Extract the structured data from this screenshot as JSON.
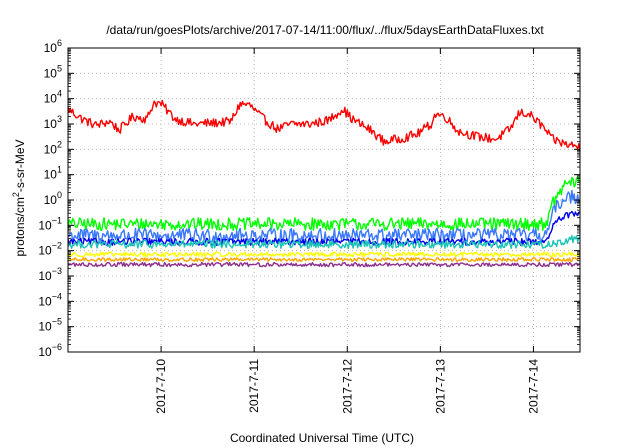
{
  "chart_data": {
    "type": "line",
    "title": "/data/run/goesPlots/archive/2017-07-14/11:00/flux/../flux/5daysEarthDataFluxes.txt",
    "xlabel": "Coordinated Universal Time (UTC)",
    "ylabel_parts": {
      "base": "protons/cm",
      "sup": "2",
      "rest": "-s-sr-MeV"
    },
    "yscale": "log",
    "ylim_exp": [
      -6,
      6
    ],
    "xlim_days": [
      -1.0,
      4.5
    ],
    "x_ticks": [
      {
        "day": 0,
        "label": "2017-7-10"
      },
      {
        "day": 1,
        "label": "2017-7-11"
      },
      {
        "day": 2,
        "label": "2017-7-12"
      },
      {
        "day": 3,
        "label": "2017-7-13"
      },
      {
        "day": 4,
        "label": "2017-7-14"
      }
    ],
    "grid": true,
    "series": [
      {
        "color": "#ff0000",
        "noise": 0.18,
        "log10_values": [
          [
            -1.0,
            3.6
          ],
          [
            -0.85,
            3.2
          ],
          [
            -0.7,
            2.95
          ],
          [
            -0.55,
            3.1
          ],
          [
            -0.45,
            2.75
          ],
          [
            -0.3,
            3.3
          ],
          [
            -0.15,
            3.2
          ],
          [
            -0.08,
            3.85
          ],
          [
            0.0,
            3.8
          ],
          [
            0.15,
            3.2
          ],
          [
            0.35,
            3.0
          ],
          [
            0.6,
            3.05
          ],
          [
            0.75,
            3.1
          ],
          [
            0.85,
            3.8
          ],
          [
            0.95,
            3.75
          ],
          [
            1.1,
            3.2
          ],
          [
            1.25,
            2.8
          ],
          [
            1.4,
            3.0
          ],
          [
            1.6,
            3.0
          ],
          [
            1.8,
            3.15
          ],
          [
            1.95,
            3.6
          ],
          [
            2.05,
            3.2
          ],
          [
            2.25,
            2.75
          ],
          [
            2.4,
            2.3
          ],
          [
            2.6,
            2.45
          ],
          [
            2.75,
            2.6
          ],
          [
            2.9,
            3.0
          ],
          [
            2.95,
            3.4
          ],
          [
            3.05,
            3.3
          ],
          [
            3.2,
            2.7
          ],
          [
            3.4,
            2.5
          ],
          [
            3.6,
            2.4
          ],
          [
            3.75,
            2.8
          ],
          [
            3.85,
            3.45
          ],
          [
            3.95,
            3.4
          ],
          [
            4.1,
            2.9
          ],
          [
            4.2,
            2.4
          ],
          [
            4.35,
            2.2
          ],
          [
            4.5,
            2.1
          ]
        ]
      },
      {
        "color": "#00ff00",
        "noise": 0.25,
        "log10_values": [
          [
            -1.0,
            -0.95
          ],
          [
            3.4,
            -0.95
          ],
          [
            4.1,
            -0.95
          ],
          [
            4.15,
            -0.8
          ],
          [
            4.2,
            -0.2
          ],
          [
            4.28,
            0.3
          ],
          [
            4.35,
            0.65
          ],
          [
            4.42,
            0.7
          ],
          [
            4.5,
            0.7
          ]
        ]
      },
      {
        "color": "#3a78ff",
        "noise": 0.28,
        "log10_values": [
          [
            -1.0,
            -1.4
          ],
          [
            4.1,
            -1.4
          ],
          [
            4.15,
            -1.3
          ],
          [
            4.2,
            -0.6
          ],
          [
            4.28,
            -0.1
          ],
          [
            4.35,
            0.1
          ],
          [
            4.42,
            0.15
          ],
          [
            4.5,
            0.1
          ]
        ]
      },
      {
        "color": "#0000ee",
        "noise": 0.14,
        "log10_values": [
          [
            -1.0,
            -1.65
          ],
          [
            4.1,
            -1.65
          ],
          [
            4.15,
            -1.5
          ],
          [
            4.22,
            -1.0
          ],
          [
            4.3,
            -0.7
          ],
          [
            4.38,
            -0.6
          ],
          [
            4.45,
            -0.55
          ],
          [
            4.5,
            -0.6
          ]
        ]
      },
      {
        "color": "#19c4b4",
        "noise": 0.16,
        "log10_values": [
          [
            -1.0,
            -1.75
          ],
          [
            4.2,
            -1.75
          ],
          [
            4.35,
            -1.6
          ],
          [
            4.5,
            -1.5
          ]
        ]
      },
      {
        "color": "#ffff00",
        "noise": 0.09,
        "log10_values": [
          [
            -1.0,
            -2.15
          ],
          [
            4.5,
            -2.15
          ]
        ]
      },
      {
        "color": "#ffa500",
        "noise": 0.07,
        "log10_values": [
          [
            -1.0,
            -2.35
          ],
          [
            4.5,
            -2.35
          ]
        ]
      },
      {
        "color": "#8e2f8e",
        "noise": 0.08,
        "log10_values": [
          [
            -1.0,
            -2.55
          ],
          [
            4.5,
            -2.55
          ]
        ]
      }
    ]
  }
}
